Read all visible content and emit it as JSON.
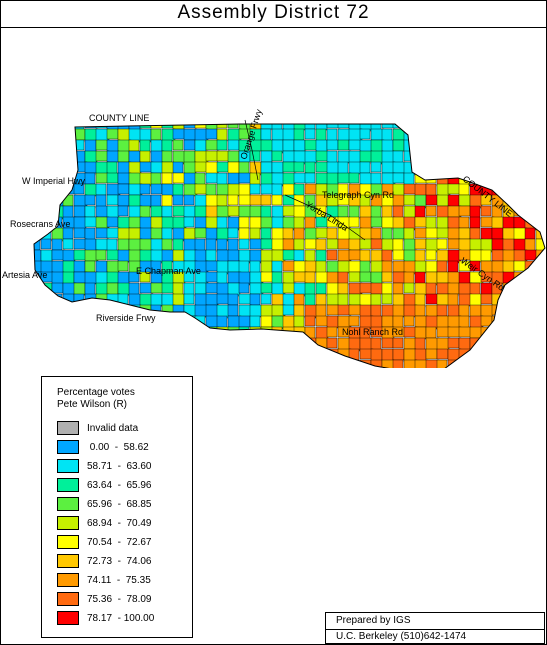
{
  "title": "Assembly District 72",
  "map_labels": {
    "county_line_top": "COUNTY LINE",
    "county_line_right": "COUNTY LINE",
    "w_imperial": "W Imperial Hwy",
    "rosecrans": "Rosecrans Ave",
    "artesia": "Artesia Ave",
    "chapman": "E Chapman Ave",
    "riverside": "Riverside Frwy",
    "telegraph": "Telegraph Cyn Rd",
    "freeway_top": "Orange Frwy",
    "diagonal_mid": "Yorba Linda",
    "weir": "Weir Cyn Rd",
    "nohl": "Nohl Ranch Rd"
  },
  "legend": {
    "title_line1": "Percentage votes",
    "title_line2": "Pete Wilson (R)",
    "items": [
      {
        "label": "Invalid data",
        "color": "#b0b0b0"
      },
      {
        "label": " 0.00  -  58.62",
        "color": "#00a6ff"
      },
      {
        "label": "58.71  -  63.60",
        "color": "#00e4f4"
      },
      {
        "label": "63.64  -  65.96",
        "color": "#00f09a"
      },
      {
        "label": "65.96  -  68.85",
        "color": "#5cf040"
      },
      {
        "label": "68.94  -  70.49",
        "color": "#c6f000"
      },
      {
        "label": "70.54  -  72.67",
        "color": "#ffff00"
      },
      {
        "label": "72.73  -  74.06",
        "color": "#ffc800"
      },
      {
        "label": "74.11  -  75.35",
        "color": "#ff9a00"
      },
      {
        "label": "75.36  -  78.09",
        "color": "#ff6a10"
      },
      {
        "label": "78.17  - 100.00",
        "color": "#ff0000"
      }
    ]
  },
  "credit": {
    "line1": "Prepared by IGS",
    "line2": "U.C. Berkeley  (510)642-1474"
  }
}
